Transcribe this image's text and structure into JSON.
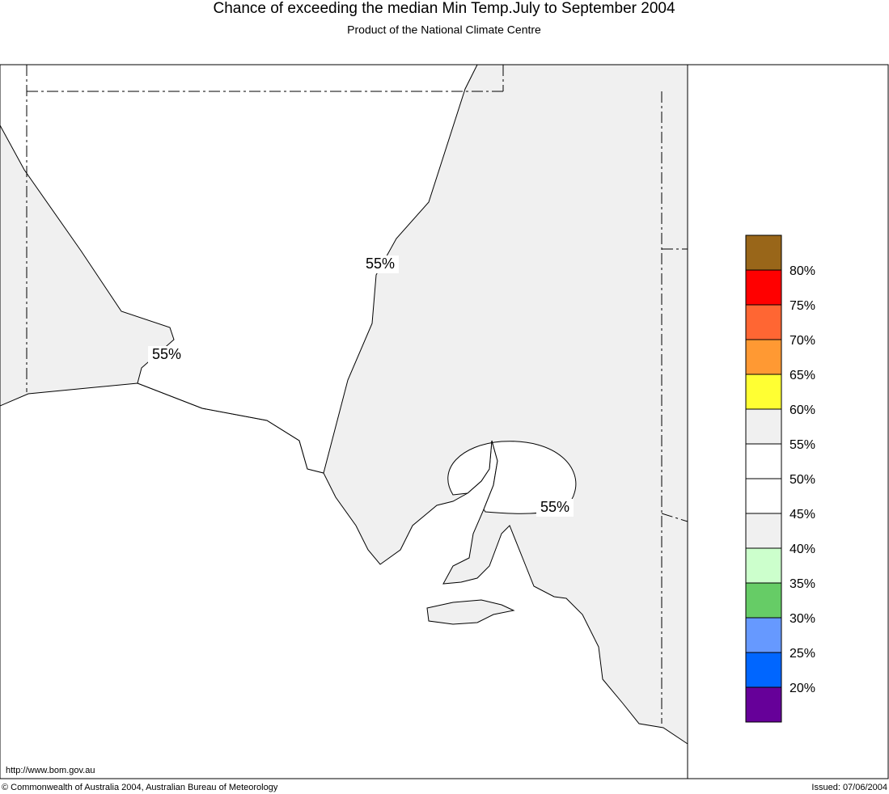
{
  "header": {
    "title": "Chance of exceeding the median Min Temp.July to September 2004",
    "subtitle": "Product of the National Climate Centre"
  },
  "map": {
    "contour_labels": [
      "55%",
      "55%",
      "55%"
    ]
  },
  "legend": {
    "colors": [
      "#996619",
      "#ff0000",
      "#ff6633",
      "#ff9933",
      "#ffff33",
      "#f0f0f0",
      "#ffffff",
      "#ffffff",
      "#f0f0f0",
      "#ccffcc",
      "#66cc66",
      "#6699ff",
      "#0066ff",
      "#660099"
    ],
    "labels": [
      "80%",
      "75%",
      "70%",
      "65%",
      "60%",
      "55%",
      "50%",
      "45%",
      "40%",
      "35%",
      "30%",
      "25%",
      "20%"
    ]
  },
  "footer": {
    "url": "http://www.bom.gov.au",
    "copyright": "© Commonwealth of Australia 2004, Australian Bureau of Meteorology",
    "issued": "Issued: 07/06/2004"
  }
}
